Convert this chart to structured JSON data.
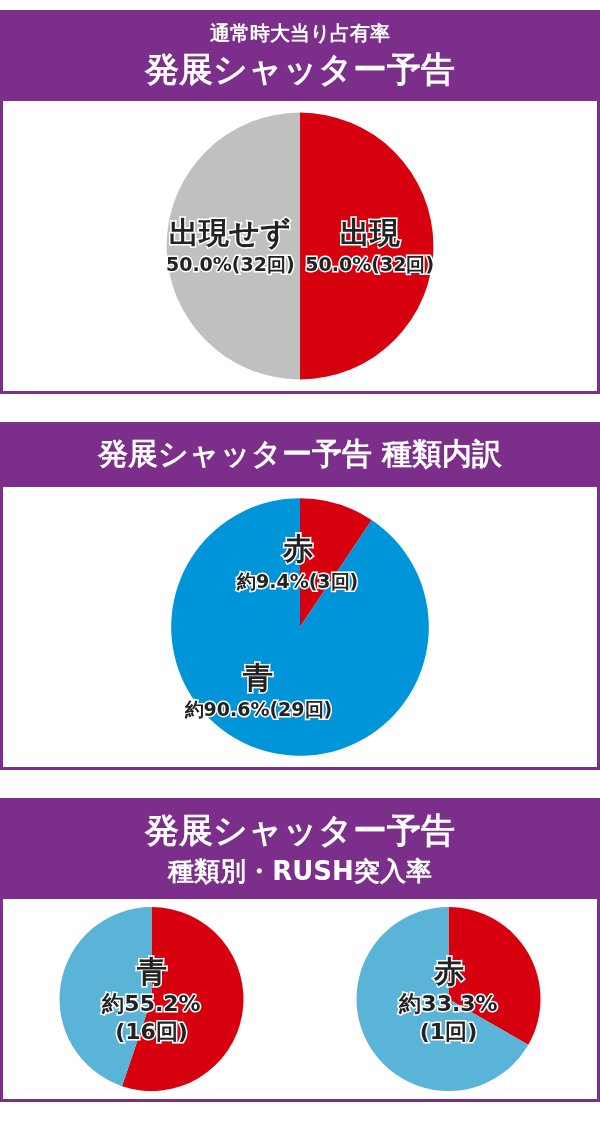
{
  "chart_data": [
    {
      "type": "pie",
      "title": "通常時大当り占有率",
      "subtitle": "発展シャッター予告",
      "categories": [
        "出現",
        "出現せず"
      ],
      "values": [
        50.0,
        50.0
      ],
      "colors": [
        "#d7000f",
        "#c0c0c0"
      ],
      "value_labels": [
        "50.0%(32回)",
        "50.0%(32回)"
      ]
    },
    {
      "type": "pie",
      "title": "発展シャッター予告 種類内訳",
      "categories": [
        "赤",
        "青"
      ],
      "values": [
        9.4,
        90.6
      ],
      "colors": [
        "#d7000f",
        "#0095d9"
      ],
      "value_labels": [
        "約9.4%(3回)",
        "約90.6%(29回)"
      ]
    },
    {
      "type": "pie",
      "title": "発展シャッター予告",
      "subtitle": "種類別・RUSH突入率",
      "categories": [
        "青",
        null
      ],
      "values": [
        55.2,
        44.8
      ],
      "colors": [
        "#d7000f",
        "#5ab4d8"
      ],
      "value_labels": [
        "約55.2%\n(16回)",
        null
      ]
    },
    {
      "type": "pie",
      "categories": [
        "赤",
        null
      ],
      "values": [
        33.3,
        66.7
      ],
      "colors": [
        "#d7000f",
        "#5ab4d8"
      ],
      "value_labels": [
        "約33.3%\n(1回)",
        null
      ]
    }
  ]
}
